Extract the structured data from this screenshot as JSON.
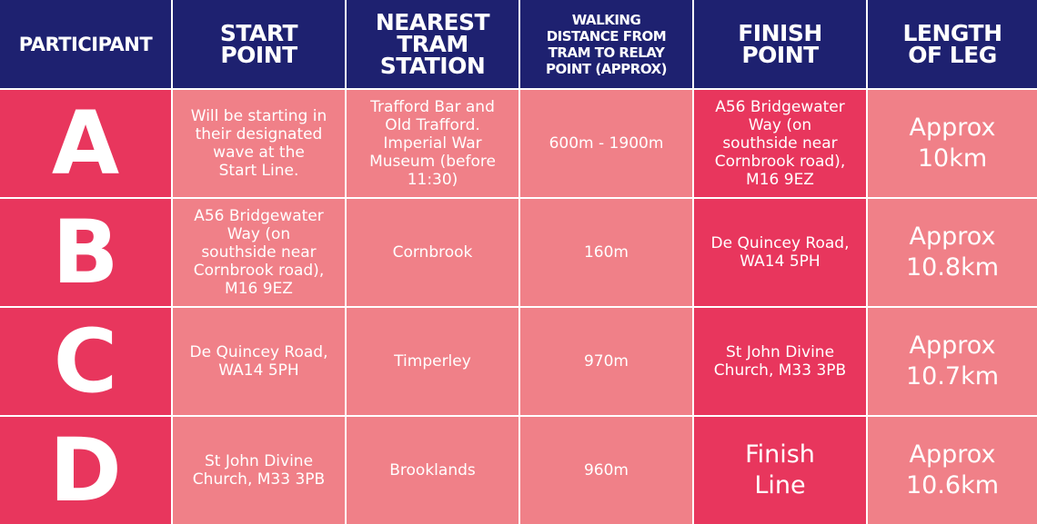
{
  "headers": {
    "participant": "PARTICIPANT",
    "start_point": "START\nPOINT",
    "nearest_tram": "NEAREST\nTRAM\nSTATION",
    "walking": "WALKING\nDISTANCE FROM\nTRAM TO RELAY\nPOINT (APPROX)",
    "finish_point": "FINISH\nPOINT",
    "length": "LENGTH\nOF LEG"
  },
  "rows": [
    {
      "participant": "A",
      "start": "Will be starting in\ntheir designated\nwave at the\nStart Line.",
      "tram": "Trafford Bar and\nOld Trafford.\nImperial War\nMuseum (before\n11:30)",
      "walk": "600m - 1900m",
      "finish": "A56 Bridgewater\nWay (on\nsouthside near\nCornbrook road),\nM16 9EZ",
      "length": "Approx\n10km"
    },
    {
      "participant": "B",
      "start": "A56 Bridgewater\nWay (on\nsouthside near\nCornbrook road),\nM16 9EZ",
      "tram": "Cornbrook",
      "walk": "160m",
      "finish": "De Quincey Road,\nWA14 5PH",
      "length": "Approx\n10.8km"
    },
    {
      "participant": "C",
      "start": "De Quincey Road,\nWA14 5PH",
      "tram": "Timperley",
      "walk": "970m",
      "finish": "St John Divine\nChurch, M33 3PB",
      "length": "Approx\n10.7km"
    },
    {
      "participant": "D",
      "start": "St John Divine\nChurch, M33 3PB",
      "tram": "Brooklands",
      "walk": "960m",
      "finish": "Finish\nLine",
      "length": "Approx\n10.6km"
    }
  ],
  "colors": {
    "header_bg": "#1e2170",
    "accent_red": "#e8365d",
    "cell_pink": "#f08088"
  }
}
